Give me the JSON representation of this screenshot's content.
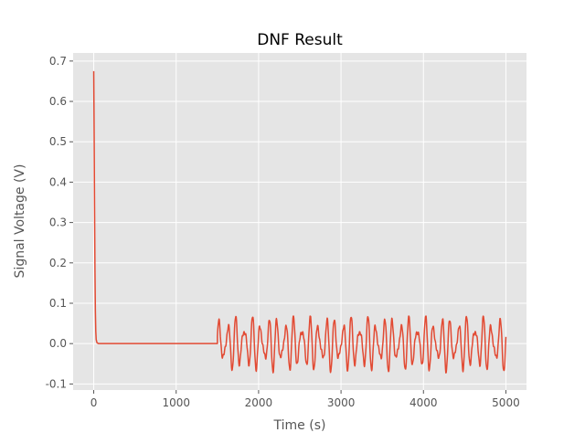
{
  "chart_data": {
    "type": "line",
    "title": "DNF Result",
    "xlabel": "Time (s)",
    "ylabel": "Signal Voltage (V)",
    "xlim": [
      -250,
      5250
    ],
    "ylim": [
      -0.115,
      0.72
    ],
    "xticks": [
      0,
      1000,
      2000,
      3000,
      4000,
      5000
    ],
    "yticks": [
      -0.1,
      0.0,
      0.1,
      0.2,
      0.3,
      0.4,
      0.5,
      0.6,
      0.7
    ],
    "grid": true,
    "style": "ggplot",
    "colors": {
      "plot_bg": "#E5E5E5",
      "grid": "#FFFFFF",
      "line": "#E24A33",
      "text": "#555555"
    },
    "series": [
      {
        "color": "#E24A33",
        "description_points": {
          "x": [
            0,
            5,
            10,
            15,
            20,
            25,
            30,
            40,
            60,
            100,
            500,
            1000,
            1490,
            1500
          ],
          "y": [
            0.675,
            0.52,
            0.34,
            0.18,
            0.08,
            0.03,
            0.01,
            0.002,
            0.0,
            0.0,
            0.0,
            0.0,
            0.0,
            0.0
          ]
        },
        "oscillation": {
          "x_start": 1500,
          "x_end": 5000,
          "y_range": [
            -0.075,
            0.068
          ],
          "dominant_period": 100,
          "secondary_period": 70
        }
      }
    ]
  }
}
